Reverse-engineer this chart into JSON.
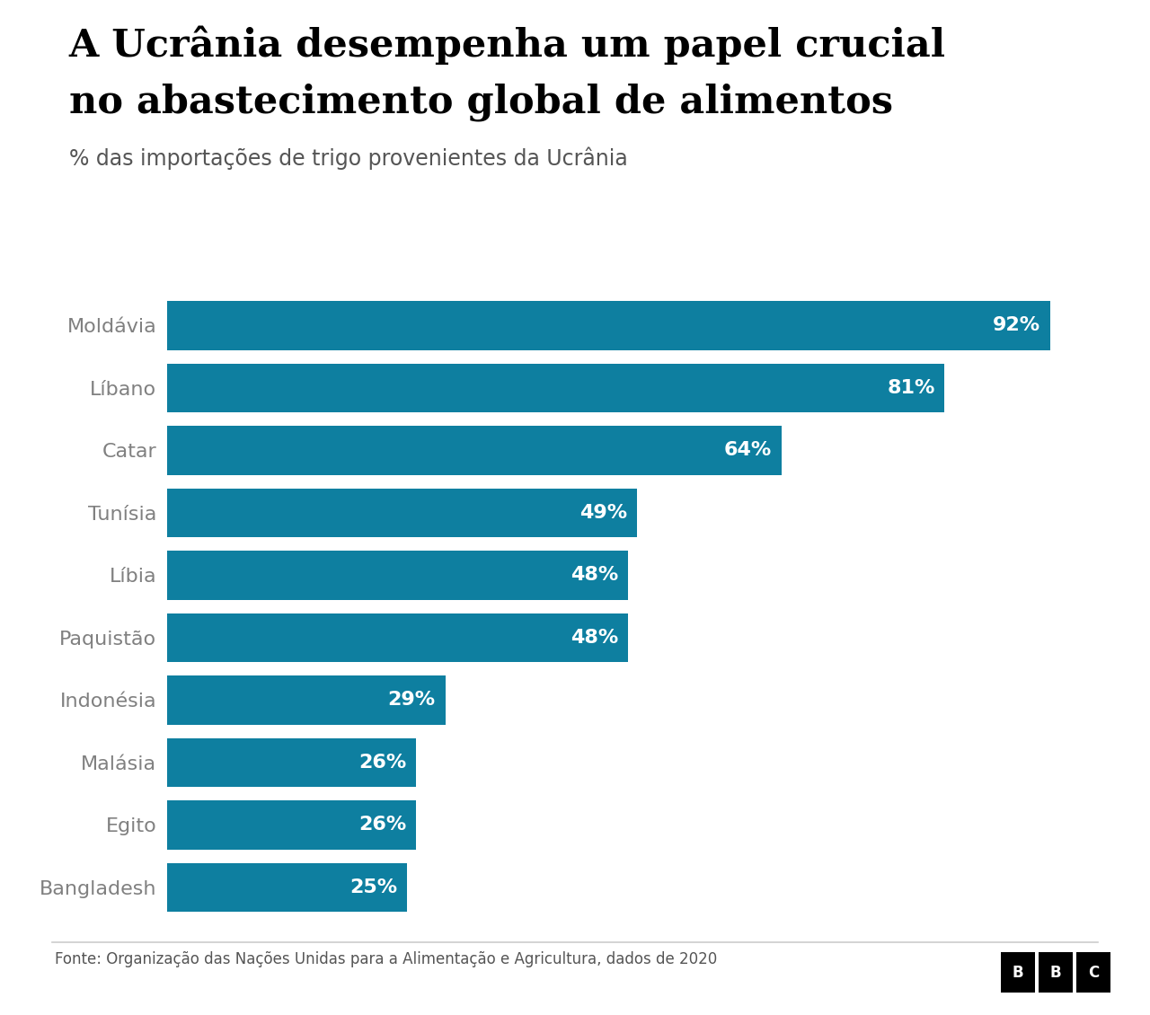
{
  "title_line1": "A Ucrânia desempenha um papel crucial",
  "title_line2": "no abastecimento global de alimentos",
  "subtitle": "% das importações de trigo provenientes da Ucrânia",
  "footer": "Fonte: Organização das Nações Unidas para a Alimentação e Agricultura, dados de 2020",
  "categories": [
    "Moldávia",
    "Líbano",
    "Catar",
    "Tunísia",
    "Líbia",
    "Paquistão",
    "Indonésia",
    "Malásia",
    "Egito",
    "Bangladesh"
  ],
  "values": [
    92,
    81,
    64,
    49,
    48,
    48,
    29,
    26,
    26,
    25
  ],
  "bar_color": "#0e7fa0",
  "label_color": "#ffffff",
  "title_color": "#000000",
  "subtitle_color": "#555555",
  "ylabel_color": "#808080",
  "background_color": "#ffffff",
  "footer_color": "#555555",
  "bbc_bg": "#000000",
  "bbc_text": "#ffffff",
  "separator_color": "#cccccc",
  "xlim": [
    0,
    100
  ],
  "bar_height": 0.78,
  "title_fontsize": 31,
  "subtitle_fontsize": 17,
  "label_fontsize": 16,
  "ylabel_fontsize": 16,
  "footer_fontsize": 12,
  "bbc_fontsize": 12
}
